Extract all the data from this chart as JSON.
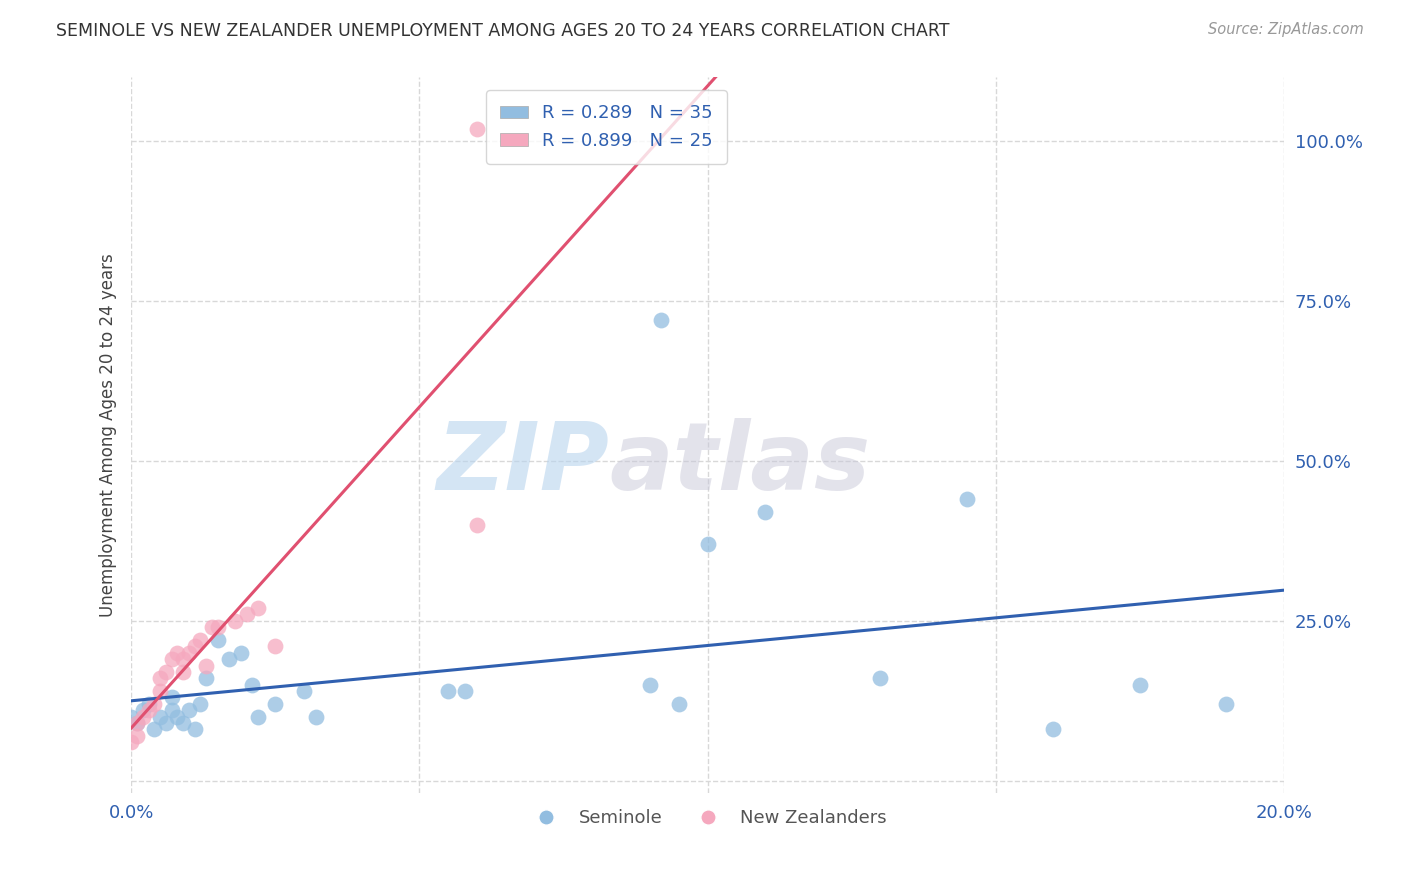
{
  "title": "SEMINOLE VS NEW ZEALANDER UNEMPLOYMENT AMONG AGES 20 TO 24 YEARS CORRELATION CHART",
  "source": "Source: ZipAtlas.com",
  "ylabel": "Unemployment Among Ages 20 to 24 years",
  "xlim": [
    0.0,
    0.2
  ],
  "ylim": [
    -0.02,
    1.1
  ],
  "xticks": [
    0.0,
    0.05,
    0.1,
    0.15,
    0.2
  ],
  "xtick_labels": [
    "0.0%",
    "",
    "",
    "",
    "20.0%"
  ],
  "yticks": [
    0.0,
    0.25,
    0.5,
    0.75,
    1.0
  ],
  "ytick_labels": [
    "",
    "25.0%",
    "50.0%",
    "75.0%",
    "100.0%"
  ],
  "background_color": "#ffffff",
  "grid_color": "#d8d8d8",
  "seminole_color": "#92bde0",
  "nz_color": "#f5a8be",
  "seminole_line_color": "#3060b0",
  "nz_line_color": "#e05070",
  "seminole_R": 0.289,
  "seminole_N": 35,
  "nz_R": 0.899,
  "nz_N": 25,
  "watermark_zip": "ZIP",
  "watermark_atlas": "atlas",
  "seminole_x": [
    0.0,
    0.001,
    0.002,
    0.003,
    0.004,
    0.005,
    0.006,
    0.007,
    0.007,
    0.008,
    0.009,
    0.01,
    0.011,
    0.012,
    0.013,
    0.015,
    0.017,
    0.019,
    0.021,
    0.022,
    0.025,
    0.03,
    0.032,
    0.055,
    0.058,
    0.09,
    0.092,
    0.095,
    0.1,
    0.11,
    0.13,
    0.145,
    0.16,
    0.175,
    0.19
  ],
  "seminole_y": [
    0.1,
    0.09,
    0.11,
    0.12,
    0.08,
    0.1,
    0.09,
    0.11,
    0.13,
    0.1,
    0.09,
    0.11,
    0.08,
    0.12,
    0.16,
    0.22,
    0.19,
    0.2,
    0.15,
    0.1,
    0.12,
    0.14,
    0.1,
    0.14,
    0.14,
    0.15,
    0.72,
    0.12,
    0.37,
    0.42,
    0.16,
    0.44,
    0.08,
    0.15,
    0.12
  ],
  "nz_x": [
    0.0,
    0.001,
    0.001,
    0.002,
    0.003,
    0.004,
    0.005,
    0.005,
    0.006,
    0.007,
    0.008,
    0.009,
    0.009,
    0.01,
    0.011,
    0.012,
    0.013,
    0.014,
    0.015,
    0.018,
    0.02,
    0.022,
    0.025,
    0.06,
    0.06
  ],
  "nz_y": [
    0.06,
    0.07,
    0.09,
    0.1,
    0.11,
    0.12,
    0.14,
    0.16,
    0.17,
    0.19,
    0.2,
    0.17,
    0.19,
    0.2,
    0.21,
    0.22,
    0.18,
    0.24,
    0.24,
    0.25,
    0.26,
    0.27,
    0.21,
    0.4,
    1.02
  ]
}
